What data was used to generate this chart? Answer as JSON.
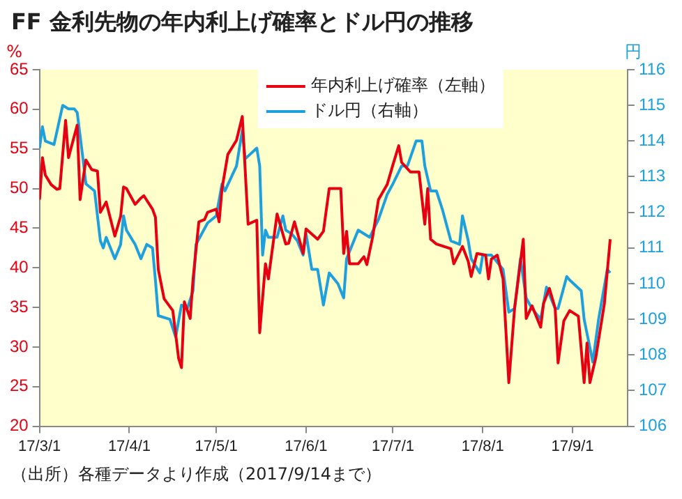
{
  "chart_data": {
    "type": "line",
    "title": "FF 金利先物の年内利上げ確率とドル円の推移",
    "ylabel": "%",
    "y2label": "円",
    "legend": "top",
    "grid": false,
    "marker": "none",
    "line_style": "solid",
    "xlim": [
      "2017-03-01",
      "2017-09-20"
    ],
    "xticks": [
      {
        "value": "2017-03-01",
        "label": "17/3/1"
      },
      {
        "value": "2017-04-01",
        "label": "17/4/1"
      },
      {
        "value": "2017-05-01",
        "label": "17/5/1"
      },
      {
        "value": "2017-06-01",
        "label": "17/6/1"
      },
      {
        "value": "2017-07-01",
        "label": "17/7/1"
      },
      {
        "value": "2017-08-01",
        "label": "17/8/1"
      },
      {
        "value": "2017-09-01",
        "label": "17/9/1"
      }
    ],
    "ylim": [
      20,
      65
    ],
    "yticks": [
      20,
      25,
      30,
      35,
      40,
      45,
      50,
      55,
      60,
      65
    ],
    "y2lim": [
      106,
      116
    ],
    "y2ticks": [
      106,
      107,
      108,
      109,
      110,
      111,
      112,
      113,
      114,
      115,
      116
    ],
    "series": [
      {
        "name": "年内利上げ確率（左軸）",
        "color": "#e60012",
        "axis": "y",
        "x": [
          "2017-03-01",
          "2017-03-02",
          "2017-03-03",
          "2017-03-05",
          "2017-03-07",
          "2017-03-08",
          "2017-03-10",
          "2017-03-11",
          "2017-03-14",
          "2017-03-15",
          "2017-03-17",
          "2017-03-19",
          "2017-03-21",
          "2017-03-22",
          "2017-03-24",
          "2017-03-27",
          "2017-03-29",
          "2017-03-30",
          "2017-03-31",
          "2017-04-03",
          "2017-04-05",
          "2017-04-06",
          "2017-04-09",
          "2017-04-10",
          "2017-04-11",
          "2017-04-13",
          "2017-04-16",
          "2017-04-18",
          "2017-04-19",
          "2017-04-20",
          "2017-04-22",
          "2017-04-23",
          "2017-04-25",
          "2017-04-27",
          "2017-04-28",
          "2017-05-01",
          "2017-05-02",
          "2017-05-03",
          "2017-05-05",
          "2017-05-08",
          "2017-05-10",
          "2017-05-12",
          "2017-05-15",
          "2017-05-16",
          "2017-05-18",
          "2017-05-19",
          "2017-05-22",
          "2017-05-25",
          "2017-05-26",
          "2017-05-28",
          "2017-05-31",
          "2017-06-01",
          "2017-06-05",
          "2017-06-07",
          "2017-06-09",
          "2017-06-13",
          "2017-06-14",
          "2017-06-15",
          "2017-06-16",
          "2017-06-19",
          "2017-06-21",
          "2017-06-22",
          "2017-06-24",
          "2017-06-26",
          "2017-06-29",
          "2017-07-01",
          "2017-07-03",
          "2017-07-04",
          "2017-07-07",
          "2017-07-10",
          "2017-07-12",
          "2017-07-13",
          "2017-07-14",
          "2017-07-16",
          "2017-07-21",
          "2017-07-22",
          "2017-07-25",
          "2017-07-27",
          "2017-07-28",
          "2017-07-30",
          "2017-08-02",
          "2017-08-03",
          "2017-08-04",
          "2017-08-06",
          "2017-08-08",
          "2017-08-10",
          "2017-08-12",
          "2017-08-15",
          "2017-08-16",
          "2017-08-18",
          "2017-08-21",
          "2017-08-22",
          "2017-08-24",
          "2017-08-26",
          "2017-08-27",
          "2017-08-29",
          "2017-08-31",
          "2017-09-03",
          "2017-09-05",
          "2017-09-06",
          "2017-09-07",
          "2017-09-09",
          "2017-09-12",
          "2017-09-14"
        ],
        "values": [
          48.6,
          53.9,
          51.7,
          50.5,
          49.9,
          50,
          58.6,
          53.9,
          58,
          48.6,
          53.6,
          52.4,
          52.2,
          47,
          48.3,
          44,
          46.5,
          50.2,
          50,
          48,
          48.8,
          49.1,
          47.4,
          46.4,
          39.8,
          36.1,
          34.6,
          28.6,
          27.4,
          35.7,
          33.6,
          38.6,
          45.8,
          46.1,
          47,
          47.4,
          45.8,
          50,
          54.3,
          56.1,
          59.1,
          45.5,
          46,
          31.8,
          40.5,
          38.6,
          46.8,
          43,
          43.1,
          45.8,
          41.8,
          44.9,
          43.6,
          44.6,
          50,
          50,
          41.8,
          44.6,
          40.5,
          40.5,
          41.4,
          40.4,
          43.9,
          48.6,
          50.5,
          53,
          55.4,
          53.3,
          52.1,
          52.1,
          45.5,
          50,
          43.6,
          43,
          42.4,
          40.5,
          42.7,
          40.8,
          38.9,
          41.8,
          41.6,
          38.6,
          41.1,
          41.6,
          38.6,
          25.5,
          34.9,
          43.6,
          33.6,
          35.2,
          32.5,
          35.5,
          37.4,
          34.9,
          28,
          33.3,
          34.6,
          33.9,
          25.5,
          30.5,
          25.5,
          28.6,
          35.5,
          43.6
        ]
      },
      {
        "name": "ドル円（右軸）",
        "color": "#1ea0dc",
        "axis": "y2",
        "x": [
          "2017-03-01",
          "2017-03-02",
          "2017-03-03",
          "2017-03-06",
          "2017-03-09",
          "2017-03-11",
          "2017-03-13",
          "2017-03-14",
          "2017-03-16",
          "2017-03-17",
          "2017-03-20",
          "2017-03-22",
          "2017-03-23",
          "2017-03-24",
          "2017-03-27",
          "2017-03-29",
          "2017-03-30",
          "2017-03-31",
          "2017-04-03",
          "2017-04-05",
          "2017-04-07",
          "2017-04-09",
          "2017-04-10",
          "2017-04-11",
          "2017-04-15",
          "2017-04-17",
          "2017-04-19",
          "2017-04-21",
          "2017-04-23",
          "2017-04-24",
          "2017-04-28",
          "2017-05-01",
          "2017-05-03",
          "2017-05-04",
          "2017-05-08",
          "2017-05-10",
          "2017-05-11",
          "2017-05-15",
          "2017-05-16",
          "2017-05-17",
          "2017-05-18",
          "2017-05-19",
          "2017-05-22",
          "2017-05-24",
          "2017-05-25",
          "2017-05-27",
          "2017-05-29",
          "2017-05-31",
          "2017-06-01",
          "2017-06-03",
          "2017-06-05",
          "2017-06-07",
          "2017-06-09",
          "2017-06-12",
          "2017-06-14",
          "2017-06-15",
          "2017-06-19",
          "2017-06-23",
          "2017-06-26",
          "2017-06-29",
          "2017-07-01",
          "2017-07-04",
          "2017-07-06",
          "2017-07-09",
          "2017-07-11",
          "2017-07-12",
          "2017-07-14",
          "2017-07-16",
          "2017-07-18",
          "2017-07-21",
          "2017-07-24",
          "2017-07-25",
          "2017-07-27",
          "2017-07-28",
          "2017-07-31",
          "2017-08-01",
          "2017-08-04",
          "2017-08-08",
          "2017-08-10",
          "2017-08-12",
          "2017-08-14",
          "2017-08-16",
          "2017-08-18",
          "2017-08-21",
          "2017-08-23",
          "2017-08-26",
          "2017-08-27",
          "2017-08-30",
          "2017-08-31",
          "2017-09-04",
          "2017-09-05",
          "2017-09-08",
          "2017-09-10",
          "2017-09-13",
          "2017-09-14"
        ],
        "values": [
          113.8,
          114.4,
          114,
          113.9,
          115,
          114.9,
          114.9,
          114.8,
          113.5,
          112.8,
          112.6,
          111.2,
          111,
          111.3,
          110.7,
          111.1,
          111.9,
          111.5,
          111.1,
          110.7,
          111.1,
          111,
          110.1,
          109.1,
          109,
          108.5,
          109.4,
          109.3,
          109.8,
          111.1,
          111.7,
          111.9,
          112.8,
          112.6,
          113.3,
          114.3,
          113.5,
          113.8,
          113.3,
          110.8,
          111.5,
          111.3,
          111.3,
          111.9,
          111.5,
          111.4,
          111.2,
          110.8,
          111.4,
          110.4,
          110.4,
          109.4,
          110.3,
          110,
          109.6,
          110.7,
          111.5,
          111.3,
          111.8,
          112.5,
          112.8,
          113.3,
          113.3,
          114,
          114,
          113.3,
          112.6,
          112.6,
          112.1,
          111.2,
          111.1,
          111.9,
          111.2,
          110.7,
          110.3,
          110.8,
          110.8,
          110.4,
          109.2,
          109.3,
          110.7,
          109.6,
          109.3,
          109,
          109.9,
          109.3,
          109.3,
          110.2,
          110.1,
          109.8,
          109,
          107.8,
          109,
          110.4,
          110.3
        ]
      }
    ],
    "annotations": [
      "（出所）各種データより作成（2017/9/14まで）"
    ]
  }
}
